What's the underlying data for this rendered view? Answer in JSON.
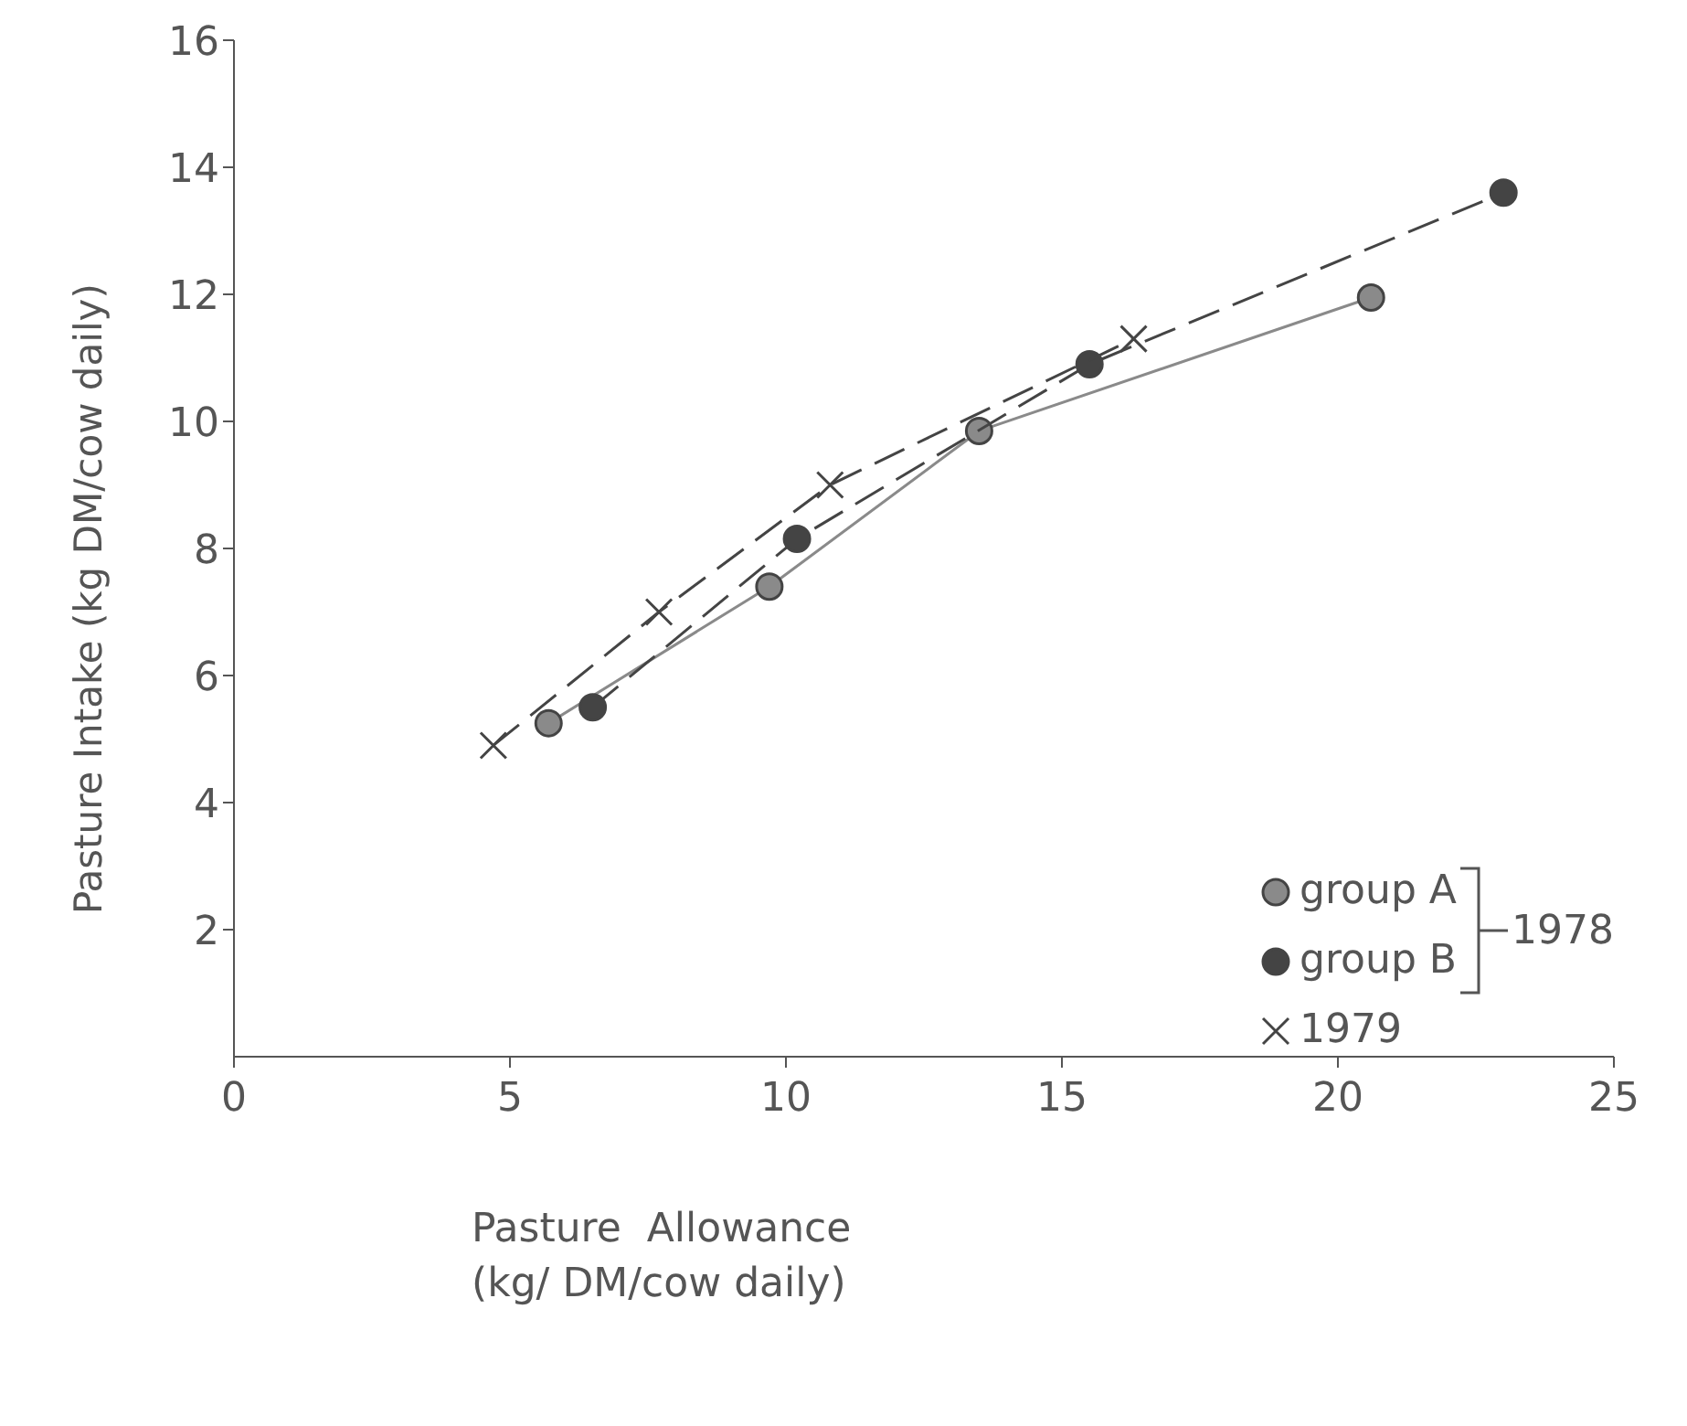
{
  "chart_data": {
    "type": "line",
    "xlabel": "Pasture  Allowance\n(kg/ DM/cow daily)",
    "ylabel": "Pasture  Intake  (kg DM/cow daily)",
    "xlim": [
      0,
      25
    ],
    "xticks": [
      0,
      5,
      10,
      15,
      20,
      25
    ],
    "ylim": [
      0,
      16
    ],
    "yticks": [
      2,
      4,
      6,
      8,
      10,
      12,
      14,
      16
    ],
    "grid": false,
    "legend": "bottom right",
    "annotations": [
      "1978"
    ],
    "series": [
      {
        "name": "group  A",
        "color": "#8a8a8a",
        "marker": "circle",
        "line_style": "solid",
        "x": [
          5.7,
          9.7,
          13.5,
          20.6
        ],
        "values": [
          5.25,
          7.4,
          9.85,
          11.95
        ]
      },
      {
        "name": "group  B",
        "color": "#444444",
        "marker": "circle",
        "line_style": "dashed",
        "x": [
          6.5,
          10.2,
          15.5,
          23.0
        ],
        "values": [
          5.5,
          8.15,
          10.9,
          13.6
        ]
      },
      {
        "name": "1979",
        "color": "#444444",
        "marker": "cross",
        "line_style": "dashed",
        "x": [
          4.7,
          7.7,
          10.8,
          16.3
        ],
        "values": [
          4.9,
          7.0,
          9.0,
          11.3
        ]
      }
    ]
  }
}
